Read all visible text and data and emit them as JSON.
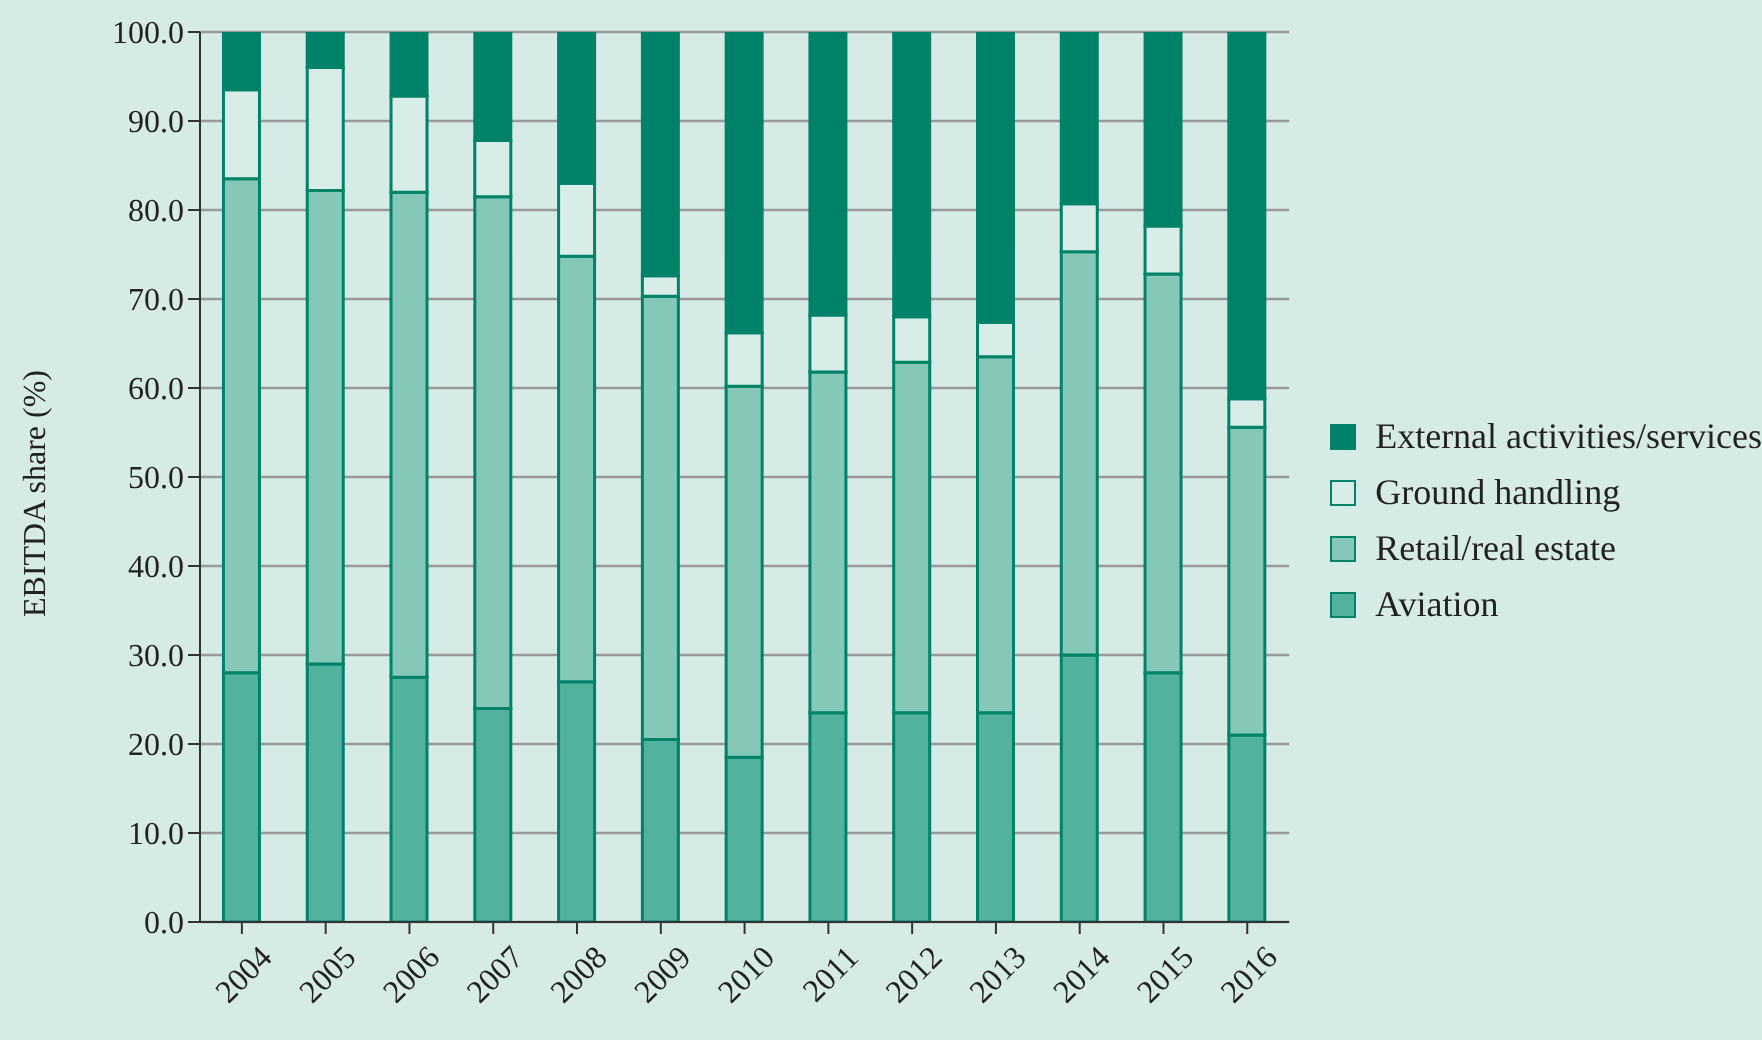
{
  "chart_data": {
    "type": "bar",
    "stacked": true,
    "ylabel": "EBITDA share (%)",
    "categories": [
      "2004",
      "2005",
      "2006",
      "2007",
      "2008",
      "2009",
      "2010",
      "2011",
      "2012",
      "2013",
      "2014",
      "2015",
      "2016"
    ],
    "series": [
      {
        "name": "Aviation",
        "color": "#52b29e",
        "values": [
          28,
          29,
          27.5,
          24,
          27,
          20.5,
          18.5,
          23.5,
          23.5,
          23.5,
          30,
          28,
          21
        ]
      },
      {
        "name": "Retail/real estate",
        "color": "#85c8b8",
        "values": [
          55.5,
          53.2,
          54.5,
          57.5,
          47.8,
          49.8,
          41.7,
          38.3,
          39.4,
          40,
          45.3,
          44.8,
          34.6
        ]
      },
      {
        "name": "Ground handling",
        "color": "#d9ede8",
        "values": [
          10,
          13.8,
          10.8,
          6.3,
          8.2,
          2.3,
          6,
          6.4,
          5.1,
          3.9,
          5.4,
          5.4,
          3.2
        ]
      },
      {
        "name": "External activities/services",
        "color": "#008268",
        "values": [
          6.5,
          4,
          7.2,
          12.2,
          17,
          27.4,
          33.8,
          31.8,
          32,
          32.6,
          19.3,
          21.8,
          41.2
        ]
      }
    ],
    "ylim": [
      0,
      100
    ],
    "yticks": [
      {
        "value": 0,
        "label": "0.0"
      },
      {
        "value": 10,
        "label": "10.0"
      },
      {
        "value": 20,
        "label": "20.0"
      },
      {
        "value": 30,
        "label": "30.0"
      },
      {
        "value": 40,
        "label": "40.0"
      },
      {
        "value": 50,
        "label": "50.0"
      },
      {
        "value": 60,
        "label": "60.0"
      },
      {
        "value": 70,
        "label": "70.0"
      },
      {
        "value": 80,
        "label": "80.0"
      },
      {
        "value": 90,
        "label": "90.0"
      },
      {
        "value": 100,
        "label": "100.0"
      }
    ],
    "grid": "y",
    "legend": "right"
  }
}
